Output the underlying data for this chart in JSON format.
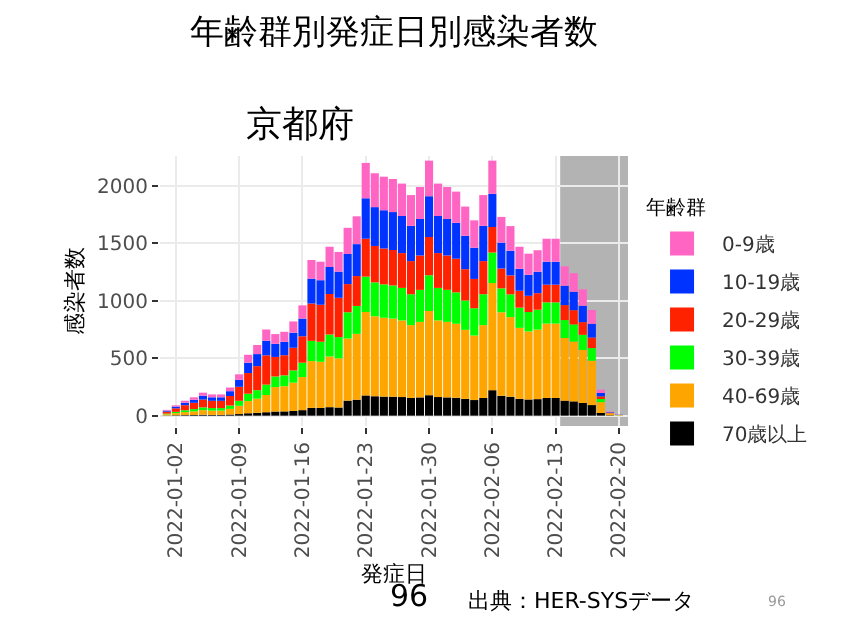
{
  "chart_data": {
    "type": "bar",
    "stacked": true,
    "title": "年齢群別発症日別感染者数",
    "subtitle": "京都府",
    "xlabel": "発症日",
    "ylabel": "感染者数",
    "legend_title": "年齢群",
    "legend": "right",
    "grid": true,
    "x": [
      "2022-01-01",
      "2022-01-02",
      "2022-01-03",
      "2022-01-04",
      "2022-01-05",
      "2022-01-06",
      "2022-01-07",
      "2022-01-08",
      "2022-01-09",
      "2022-01-10",
      "2022-01-11",
      "2022-01-12",
      "2022-01-13",
      "2022-01-14",
      "2022-01-15",
      "2022-01-16",
      "2022-01-17",
      "2022-01-18",
      "2022-01-19",
      "2022-01-20",
      "2022-01-21",
      "2022-01-22",
      "2022-01-23",
      "2022-01-24",
      "2022-01-25",
      "2022-01-26",
      "2022-01-27",
      "2022-01-28",
      "2022-01-29",
      "2022-01-30",
      "2022-01-31",
      "2022-02-01",
      "2022-02-02",
      "2022-02-03",
      "2022-02-04",
      "2022-02-05",
      "2022-02-06",
      "2022-02-07",
      "2022-02-08",
      "2022-02-09",
      "2022-02-10",
      "2022-02-11",
      "2022-02-12",
      "2022-02-13",
      "2022-02-14",
      "2022-02-15",
      "2022-02-16",
      "2022-02-17",
      "2022-02-18",
      "2022-02-19",
      "2022-02-20"
    ],
    "xlim": [
      "2021-12-31T06:00",
      "2022-02-21"
    ],
    "xticks": [
      "2022-01-02",
      "2022-01-09",
      "2022-01-16",
      "2022-01-23",
      "2022-01-30",
      "2022-02-06",
      "2022-02-13",
      "2022-02-20"
    ],
    "ylim": [
      -90,
      2260
    ],
    "yticks": [
      0,
      500,
      1000,
      1500,
      2000
    ],
    "series": [
      {
        "name": "70歳以上",
        "color": "#000000",
        "values": [
          2,
          4,
          5,
          6,
          8,
          7,
          7,
          10,
          14,
          21,
          25,
          30,
          36,
          37,
          41,
          48,
          68,
          67,
          74,
          71,
          131,
          139,
          176,
          169,
          166,
          165,
          162,
          154,
          159,
          178,
          162,
          159,
          156,
          146,
          136,
          154,
          222,
          173,
          165,
          147,
          141,
          144,
          154,
          154,
          130,
          124,
          110,
          92,
          23,
          4,
          null
        ]
      },
      {
        "name": "40-69歳",
        "color": "#ffa500",
        "values": [
          10,
          18,
          26,
          32,
          40,
          37,
          37,
          49,
          72,
          106,
          123,
          150,
          213,
          219,
          246,
          288,
          407,
          402,
          441,
          428,
          540,
          573,
          726,
          696,
          686,
          680,
          667,
          634,
          657,
          733,
          667,
          657,
          644,
          601,
          561,
          634,
          932,
          727,
          693,
          617,
          592,
          605,
          647,
          647,
          546,
          521,
          462,
          386,
          95,
          17,
          4
        ]
      },
      {
        "name": "30-39歳",
        "color": "#00ff00",
        "values": [
          6,
          11,
          16,
          19,
          24,
          22,
          22,
          29,
          43,
          64,
          74,
          90,
          92,
          95,
          107,
          125,
          176,
          174,
          191,
          185,
          229,
          243,
          308,
          295,
          291,
          288,
          283,
          269,
          279,
          311,
          283,
          279,
          273,
          255,
          238,
          269,
          266,
          208,
          198,
          176,
          169,
          173,
          185,
          185,
          156,
          149,
          132,
          110,
          27,
          null,
          1
        ]
      },
      {
        "name": "20-29歳",
        "color": "#ff2200",
        "values": [
          17,
          31,
          44,
          55,
          68,
          63,
          63,
          83,
          122,
          180,
          209,
          255,
          170,
          175,
          197,
          230,
          325,
          322,
          353,
          342,
          245,
          260,
          330,
          317,
          312,
          309,
          303,
          288,
          299,
          333,
          303,
          299,
          293,
          273,
          255,
          288,
          222,
          173,
          165,
          147,
          141,
          144,
          154,
          154,
          130,
          124,
          110,
          92,
          23,
          4,
          1
        ]
      },
      {
        "name": "10-19歳",
        "color": "#0033ff",
        "values": [
          9,
          15,
          22,
          27,
          34,
          31,
          31,
          42,
          61,
          90,
          105,
          128,
          114,
          117,
          131,
          154,
          217,
          214,
          235,
          228,
          262,
          278,
          352,
          338,
          333,
          330,
          323,
          307,
          318,
          355,
          323,
          318,
          312,
          291,
          272,
          307,
          289,
          225,
          215,
          191,
          183,
          187,
          200,
          200,
          169,
          161,
          143,
          120,
          29,
          5,
          2
        ]
      },
      {
        "name": "0-9歳",
        "color": "#ff66c4",
        "values": [
          6,
          11,
          17,
          21,
          26,
          25,
          25,
          32,
          48,
          69,
          79,
          97,
          85,
          87,
          98,
          115,
          162,
          161,
          176,
          171,
          228,
          242,
          308,
          295,
          292,
          288,
          282,
          268,
          278,
          310,
          282,
          278,
          272,
          254,
          238,
          268,
          289,
          224,
          214,
          192,
          184,
          187,
          200,
          200,
          169,
          161,
          143,
          120,
          29,
          5,
          1
        ]
      }
    ],
    "bands": [
      {
        "axis": "x",
        "from": "2022-02-13T12:00",
        "to": "2022-02-21",
        "color": "#b3b3b3"
      }
    ],
    "annotations": [
      "96",
      "出典：HER-SYSデータ",
      "96"
    ]
  }
}
